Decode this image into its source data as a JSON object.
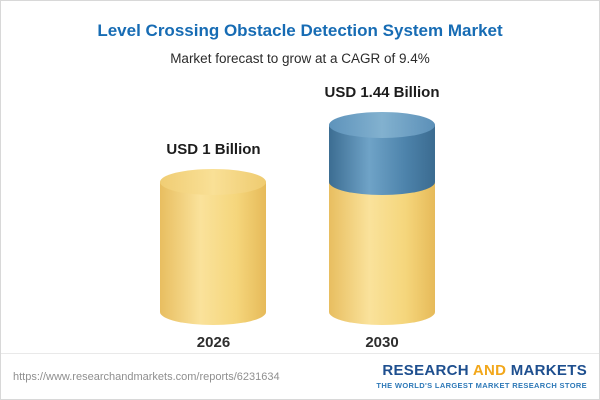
{
  "header": {
    "title": "Level Crossing Obstacle Detection System Market",
    "subtitle": "Market forecast to grow at a CAGR of 9.4%"
  },
  "chart_data": {
    "type": "bar",
    "subtype": "cylinder-3d",
    "categories": [
      "2026",
      "2030"
    ],
    "values": [
      1,
      1.44
    ],
    "unit": "USD Billion",
    "value_labels": [
      "USD 1 Billion",
      "USD 1.44 Billion"
    ],
    "title": "Level Crossing Obstacle Detection System Market",
    "subtitle": "Market forecast to grow at a CAGR of 9.4%",
    "cagr_percent": 9.4,
    "legend": "none",
    "grid": false,
    "ylim": [
      0,
      1.6
    ],
    "colors": {
      "bar_base": "#F5D67C",
      "bar_growth": "#4D83AB",
      "title": "#176CB4"
    },
    "layout_hint": "2030 bar is stacked: yellow base equals 2026 value, blue top section shows growth above 1 billion"
  },
  "footer": {
    "url": "https://www.researchandmarkets.com/reports/6231634",
    "brand": {
      "word1": "RESEARCH",
      "word2": "AND",
      "word3": "MARKETS",
      "tagline": "THE WORLD'S LARGEST MARKET RESEARCH STORE"
    }
  }
}
